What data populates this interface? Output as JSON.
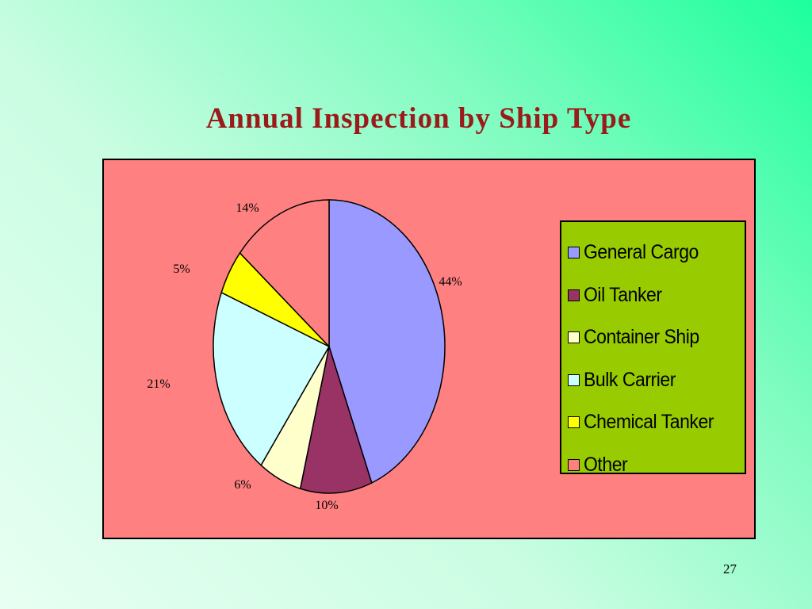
{
  "slide": {
    "title": "Annual Inspection by Ship Type",
    "page_number": "27"
  },
  "colors": {
    "chart_background": "#ff8080",
    "legend_background": "#99cc00",
    "title": "#9b1a1a"
  },
  "chart_data": {
    "type": "pie",
    "title": "Annual Inspection by Ship Type",
    "legend_position": "right",
    "labels": [
      "General Cargo",
      "Oil Tanker",
      "Container Ship",
      "Bulk Carrier",
      "Chemical Tanker",
      "Other"
    ],
    "values": [
      44,
      10,
      6,
      21,
      5,
      14
    ],
    "value_labels": [
      "44%",
      "10%",
      "6%",
      "21%",
      "5%",
      "14%"
    ],
    "colors": [
      "#9999ff",
      "#993366",
      "#ffffcc",
      "#ccffff",
      "#ffff00",
      "#ff8080"
    ]
  }
}
